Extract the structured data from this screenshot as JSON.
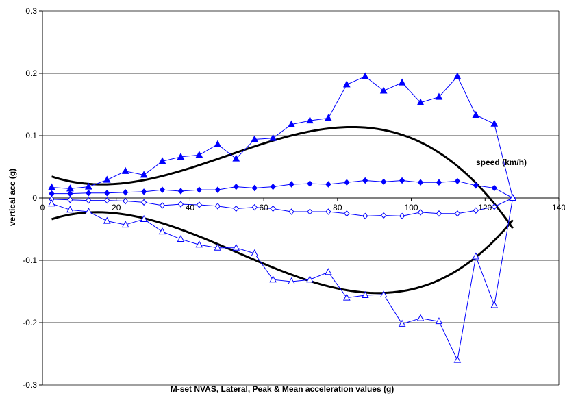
{
  "chart_data": {
    "type": "line",
    "title": "",
    "xlabel": "M-set NVAS, Lateral, Peak & Mean acceleration values (g)",
    "ylabel": "vertical acc (g)",
    "annotation": "speed (km/h)",
    "xlim": [
      0,
      140
    ],
    "ylim": [
      -0.3,
      0.3
    ],
    "xticks": [
      0,
      20,
      40,
      60,
      80,
      100,
      120,
      140
    ],
    "yticks": [
      -0.3,
      -0.2,
      -0.1,
      0,
      0.1,
      0.2,
      0.3
    ],
    "grid": "horizontal",
    "series_color": "#0000ff",
    "trend_color": "#000000",
    "series": [
      {
        "marker": "filled-triangle",
        "x": [
          2.5,
          7.5,
          12.5,
          17.5,
          22.5,
          27.5,
          32.5,
          37.5,
          42.5,
          47.5,
          52.5,
          57.5,
          62.5,
          67.5,
          72.5,
          77.5,
          82.5,
          87.5,
          92.5,
          97.5,
          102.5,
          107.5,
          112.5,
          117.5,
          122.5,
          127.5
        ],
        "y": [
          0.017,
          0.015,
          0.018,
          0.029,
          0.043,
          0.037,
          0.059,
          0.066,
          0.069,
          0.086,
          0.063,
          0.094,
          0.096,
          0.118,
          0.124,
          0.128,
          0.182,
          0.195,
          0.172,
          0.185,
          0.153,
          0.162,
          0.195,
          0.133,
          0.119,
          0.0
        ]
      },
      {
        "marker": "filled-diamond",
        "x": [
          2.5,
          7.5,
          12.5,
          17.5,
          22.5,
          27.5,
          32.5,
          37.5,
          42.5,
          47.5,
          52.5,
          57.5,
          62.5,
          67.5,
          72.5,
          77.5,
          82.5,
          87.5,
          92.5,
          97.5,
          102.5,
          107.5,
          112.5,
          117.5,
          122.5,
          127.5
        ],
        "y": [
          0.007,
          0.007,
          0.008,
          0.008,
          0.009,
          0.01,
          0.013,
          0.011,
          0.013,
          0.013,
          0.018,
          0.016,
          0.018,
          0.022,
          0.023,
          0.022,
          0.025,
          0.028,
          0.026,
          0.028,
          0.025,
          0.025,
          0.027,
          0.02,
          0.016,
          0.0
        ]
      },
      {
        "marker": "open-diamond",
        "x": [
          2.5,
          7.5,
          12.5,
          17.5,
          22.5,
          27.5,
          32.5,
          37.5,
          42.5,
          47.5,
          52.5,
          57.5,
          62.5,
          67.5,
          72.5,
          77.5,
          82.5,
          87.5,
          92.5,
          97.5,
          102.5,
          107.5,
          112.5,
          117.5,
          122.5,
          127.5
        ],
        "y": [
          -0.002,
          -0.003,
          -0.004,
          -0.004,
          -0.005,
          -0.007,
          -0.012,
          -0.01,
          -0.011,
          -0.013,
          -0.017,
          -0.015,
          -0.017,
          -0.022,
          -0.022,
          -0.022,
          -0.025,
          -0.029,
          -0.028,
          -0.029,
          -0.023,
          -0.025,
          -0.025,
          -0.02,
          -0.014,
          0.0
        ]
      },
      {
        "marker": "open-triangle",
        "x": [
          2.5,
          7.5,
          12.5,
          17.5,
          22.5,
          27.5,
          32.5,
          37.5,
          42.5,
          47.5,
          52.5,
          57.5,
          62.5,
          67.5,
          72.5,
          77.5,
          82.5,
          87.5,
          92.5,
          97.5,
          102.5,
          107.5,
          112.5,
          117.5,
          122.5,
          127.5
        ],
        "y": [
          -0.009,
          -0.019,
          -0.022,
          -0.037,
          -0.043,
          -0.034,
          -0.054,
          -0.066,
          -0.075,
          -0.08,
          -0.08,
          -0.089,
          -0.131,
          -0.134,
          -0.131,
          -0.119,
          -0.16,
          -0.156,
          -0.155,
          -0.202,
          -0.193,
          -0.198,
          -0.26,
          -0.094,
          -0.172,
          0.0
        ]
      }
    ],
    "trendlines": [
      {
        "x_start": 2.5,
        "x_end": 127.5,
        "poly": [
          0.03993,
          -0.0024,
          8.86e-05,
          -5.9e-07
        ]
      },
      {
        "x_start": 2.5,
        "x_end": 127.5,
        "poly": [
          -0.03931,
          0.002356,
          -9.27e-05,
          5.84e-07
        ]
      }
    ]
  }
}
